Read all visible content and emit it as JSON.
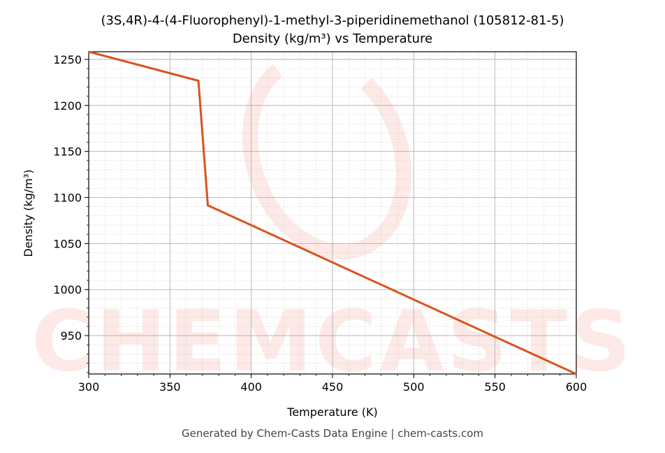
{
  "chart_data": {
    "type": "line",
    "title": "(3S,4R)-4-(4-Fluorophenyl)-1-methyl-3-piperidinemethanol (105812-81-5)",
    "subtitle": "Density (kg/m³) vs Temperature",
    "xlabel": "Temperature (K)",
    "ylabel": "Density (kg/m³)",
    "xlim": [
      300,
      600
    ],
    "ylim": [
      908.3,
      1258.3
    ],
    "xticks": [
      300,
      350,
      400,
      450,
      500,
      550,
      600
    ],
    "yticks": [
      950,
      1000,
      1050,
      1100,
      1150,
      1200,
      1250
    ],
    "grid": true,
    "series": [
      {
        "name": "Density",
        "color": "#d9531e",
        "x": [
          300,
          367.5,
          373.3,
          600
        ],
        "y": [
          1258.3,
          1226.8,
          1091.5,
          908.3
        ]
      }
    ],
    "watermark": "CHEMCASTS"
  },
  "footer": "Generated by Chem-Casts Data Engine | chem-casts.com"
}
